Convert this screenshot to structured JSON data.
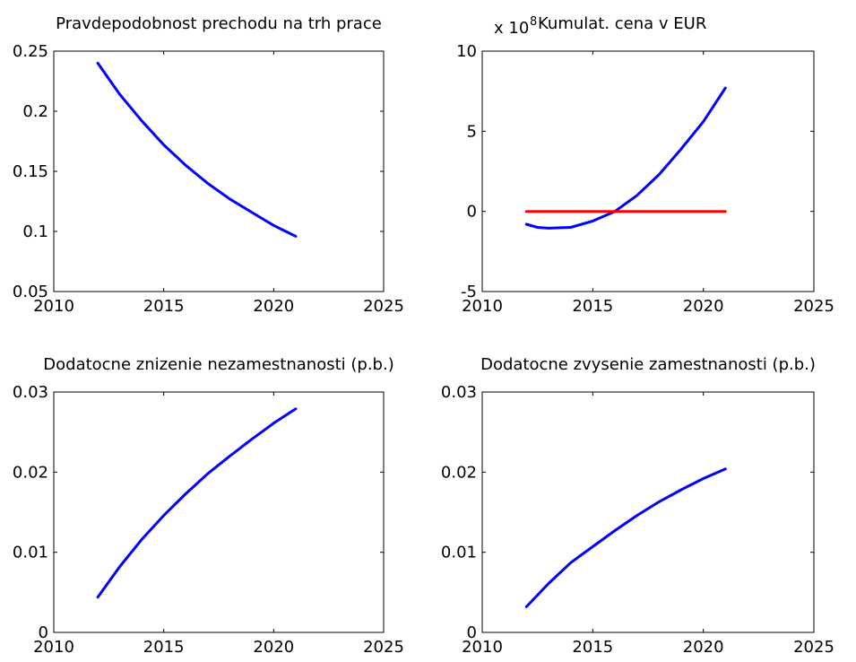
{
  "figure": {
    "background": "#ffffff"
  },
  "chart_data": [
    {
      "type": "line",
      "title": "Pravdepodobnost prechodu na trh prace",
      "exponent_label": "",
      "xlim": [
        2010,
        2025
      ],
      "ylim": [
        0.05,
        0.25
      ],
      "xticks": [
        2010,
        2015,
        2020,
        2025
      ],
      "yticks": [
        0.05,
        0.1,
        0.15,
        0.2,
        0.25
      ],
      "ytick_labels": [
        "0.05",
        "0.1",
        "0.15",
        "0.2",
        "0.25"
      ],
      "grid": false,
      "series": [
        {
          "color": "#0000ff",
          "x": [
            2012,
            2013,
            2014,
            2015,
            2016,
            2017,
            2018,
            2019,
            2020,
            2021
          ],
          "y": [
            0.24,
            0.214,
            0.192,
            0.172,
            0.155,
            0.14,
            0.127,
            0.116,
            0.105,
            0.096
          ]
        }
      ]
    },
    {
      "type": "line",
      "title": "Kumulat. cena v EUR",
      "exponent_label": "x 10",
      "exponent_power": "8",
      "xlim": [
        2010,
        2025
      ],
      "ylim": [
        -5,
        10
      ],
      "xticks": [
        2010,
        2015,
        2020,
        2025
      ],
      "yticks": [
        -5,
        0,
        5,
        10
      ],
      "ytick_labels": [
        "-5",
        "0",
        "5",
        "10"
      ],
      "grid": false,
      "series": [
        {
          "color": "#0000ff",
          "x": [
            2012,
            2012.5,
            2013,
            2014,
            2015,
            2016,
            2017,
            2018,
            2019,
            2020,
            2021
          ],
          "y": [
            -0.8,
            -1.0,
            -1.05,
            -1.0,
            -0.6,
            0.0,
            1.0,
            2.3,
            3.9,
            5.6,
            7.7
          ]
        },
        {
          "color": "#ff0000",
          "x": [
            2012,
            2021
          ],
          "y": [
            0,
            0
          ]
        }
      ]
    },
    {
      "type": "line",
      "title": "Dodatocne znizenie nezamestnanosti (p.b.)",
      "exponent_label": "",
      "xlim": [
        2010,
        2025
      ],
      "ylim": [
        0,
        0.03
      ],
      "xticks": [
        2010,
        2015,
        2020,
        2025
      ],
      "yticks": [
        0,
        0.01,
        0.02,
        0.03
      ],
      "ytick_labels": [
        "0",
        "0.01",
        "0.02",
        "0.03"
      ],
      "grid": false,
      "series": [
        {
          "color": "#0000ff",
          "x": [
            2012,
            2013,
            2014,
            2015,
            2016,
            2017,
            2018,
            2019,
            2020,
            2021
          ],
          "y": [
            0.0044,
            0.0082,
            0.0116,
            0.0146,
            0.0173,
            0.0198,
            0.022,
            0.0241,
            0.0261,
            0.0279
          ]
        }
      ]
    },
    {
      "type": "line",
      "title": "Dodatocne zvysenie zamestnanosti (p.b.)",
      "exponent_label": "",
      "xlim": [
        2010,
        2025
      ],
      "ylim": [
        0,
        0.03
      ],
      "xticks": [
        2010,
        2015,
        2020,
        2025
      ],
      "yticks": [
        0,
        0.01,
        0.02,
        0.03
      ],
      "ytick_labels": [
        "0",
        "0.01",
        "0.02",
        "0.03"
      ],
      "grid": false,
      "series": [
        {
          "color": "#0000ff",
          "x": [
            2012,
            2013,
            2014,
            2015,
            2016,
            2017,
            2018,
            2019,
            2020,
            2021
          ],
          "y": [
            0.0032,
            0.0061,
            0.0087,
            0.0107,
            0.0127,
            0.0146,
            0.0163,
            0.0178,
            0.0192,
            0.0204
          ]
        }
      ]
    }
  ]
}
